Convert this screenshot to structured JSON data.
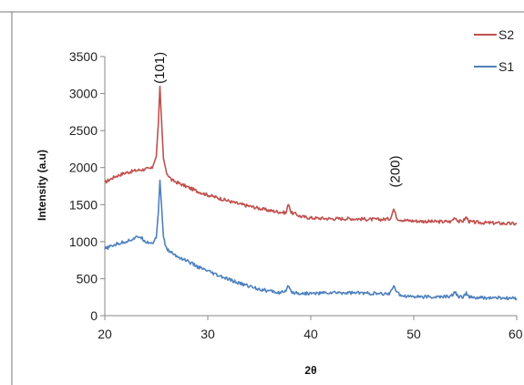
{
  "chart_data": {
    "type": "line",
    "title": "",
    "xlabel": "2θ",
    "ylabel": "Intensity (a.u)",
    "xlim": [
      20,
      60
    ],
    "ylim": [
      0,
      3500
    ],
    "x_ticks": [
      "20",
      "30",
      "40",
      "50",
      "60"
    ],
    "y_ticks": [
      "0",
      "500",
      "1000",
      "1500",
      "2000",
      "2500",
      "3000",
      "3500"
    ],
    "grid": false,
    "legend_position": "top-right",
    "annotations": [
      {
        "text": "(101)",
        "x": 25.3,
        "y": 3150
      },
      {
        "text": "(200)",
        "x": 48.2,
        "y": 1750
      }
    ],
    "series": [
      {
        "name": "S2",
        "color": "#c0504d",
        "x": [
          20,
          21,
          22,
          23,
          24,
          24.6,
          25.0,
          25.2,
          25.35,
          25.5,
          25.7,
          26.0,
          26.5,
          27,
          28,
          29,
          30,
          31,
          32,
          33,
          34,
          35,
          36,
          37,
          37.6,
          37.85,
          38.1,
          38.6,
          39,
          40,
          42,
          44,
          46,
          47,
          47.7,
          48.05,
          48.4,
          49,
          50,
          52,
          53.6,
          54,
          54.4,
          54.8,
          55.1,
          55.4,
          56,
          58,
          60
        ],
        "y": [
          1800,
          1880,
          1930,
          1960,
          1980,
          1990,
          2150,
          2600,
          3100,
          2650,
          2120,
          1930,
          1830,
          1800,
          1740,
          1680,
          1630,
          1590,
          1550,
          1510,
          1480,
          1450,
          1420,
          1400,
          1390,
          1520,
          1390,
          1370,
          1340,
          1320,
          1310,
          1310,
          1300,
          1300,
          1310,
          1440,
          1310,
          1290,
          1280,
          1270,
          1270,
          1330,
          1270,
          1280,
          1330,
          1270,
          1260,
          1250,
          1240
        ]
      },
      {
        "name": "S1",
        "color": "#4f81bd",
        "x": [
          20,
          21,
          22,
          22.8,
          23.4,
          24,
          24.6,
          25.0,
          25.2,
          25.35,
          25.5,
          25.7,
          26.0,
          26.5,
          27,
          28,
          29,
          30,
          31,
          32,
          33,
          34,
          35,
          36,
          37,
          37.6,
          37.85,
          38.1,
          38.6,
          39,
          40,
          42,
          44,
          46,
          47,
          47.7,
          48.05,
          48.4,
          49,
          50,
          52,
          53.6,
          54,
          54.4,
          54.8,
          55.1,
          55.4,
          56,
          58,
          60
        ],
        "y": [
          900,
          960,
          1000,
          1040,
          1070,
          1000,
          980,
          1050,
          1400,
          1830,
          1500,
          1050,
          900,
          850,
          800,
          740,
          660,
          600,
          540,
          490,
          440,
          400,
          360,
          330,
          310,
          320,
          420,
          320,
          310,
          300,
          300,
          310,
          310,
          300,
          290,
          300,
          420,
          300,
          270,
          260,
          250,
          260,
          320,
          250,
          260,
          300,
          250,
          240,
          240,
          230
        ]
      }
    ]
  }
}
